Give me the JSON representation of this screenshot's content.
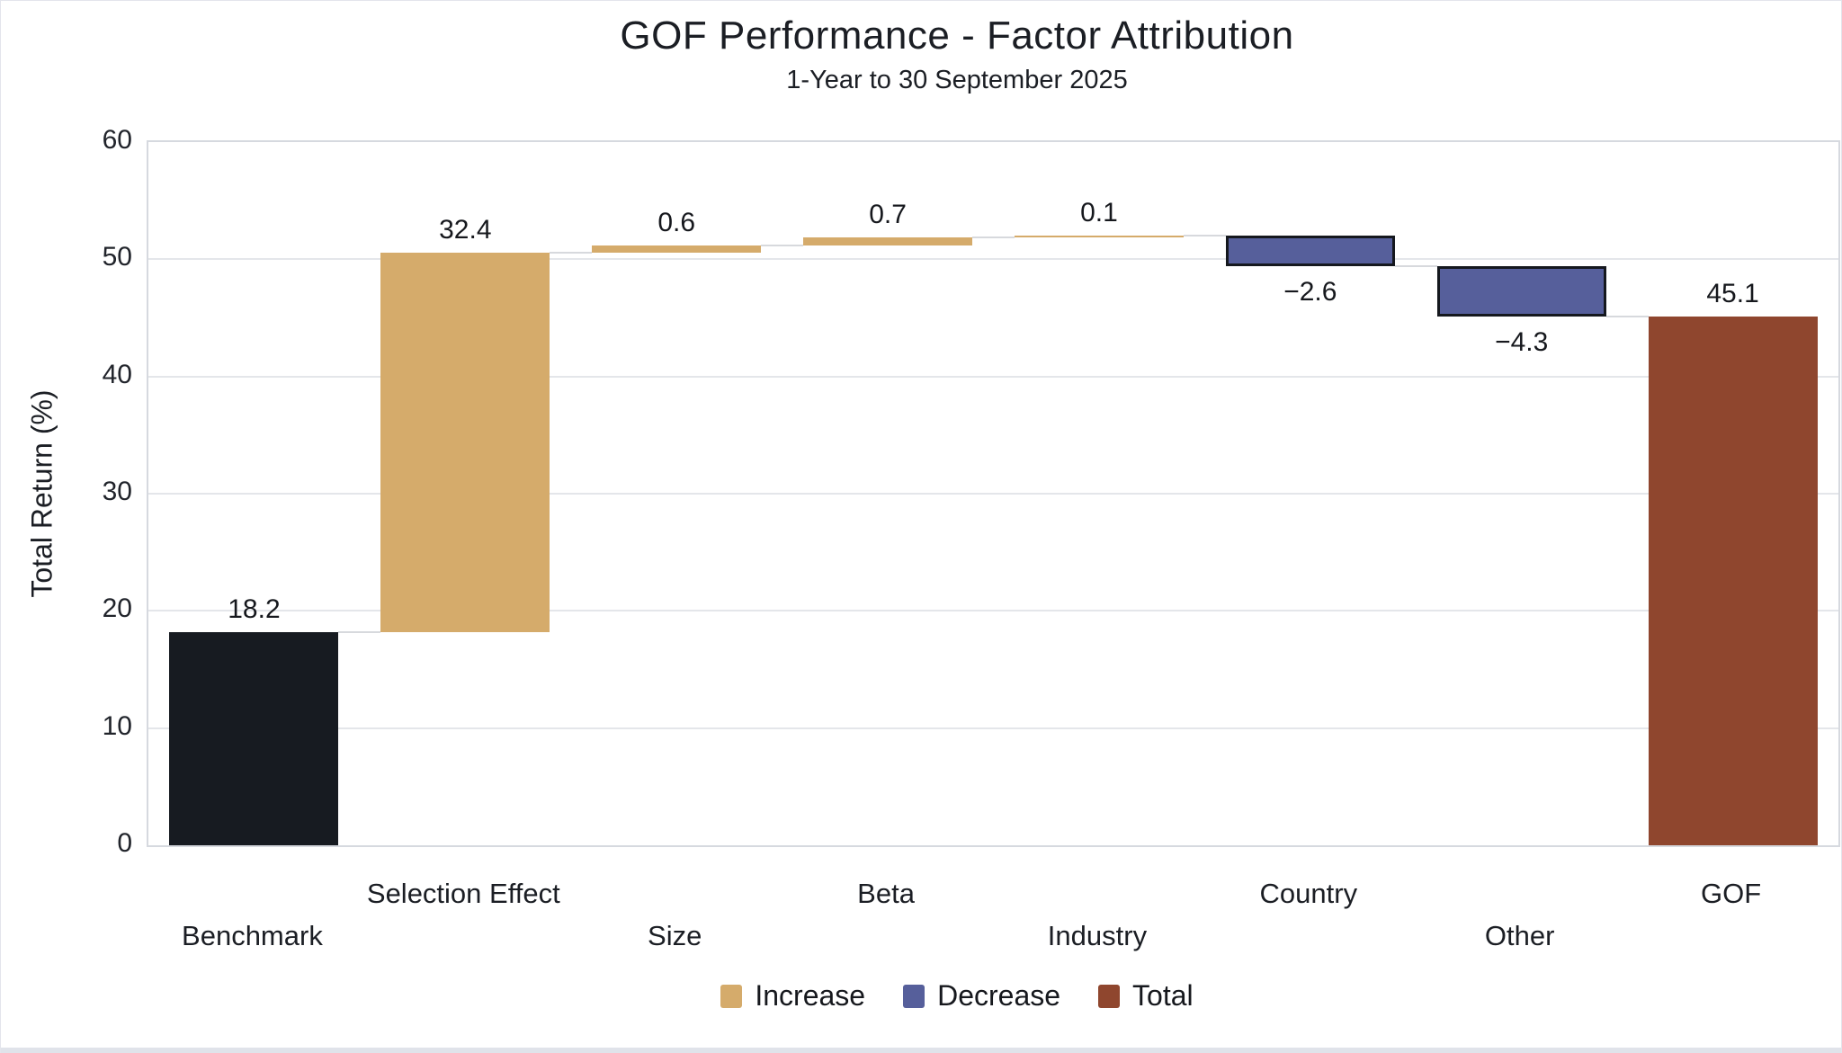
{
  "chart_data": {
    "type": "waterfall",
    "title": "GOF Performance - Factor Attribution",
    "subtitle": "1-Year to 30 September 2025",
    "ylabel": "Total Return (%)",
    "ylim": [
      0,
      60
    ],
    "yticks": [
      0,
      10,
      20,
      30,
      40,
      50,
      60
    ],
    "grid": "horizontal-only",
    "categories": [
      "Benchmark",
      "Selection Effect",
      "Size",
      "Beta",
      "Industry",
      "Country",
      "Other",
      "GOF"
    ],
    "measures": [
      "absolute",
      "relative",
      "relative",
      "relative",
      "relative",
      "relative",
      "relative",
      "total"
    ],
    "values": [
      18.2,
      32.4,
      0.6,
      0.7,
      0.1,
      -2.6,
      -4.3,
      45.1
    ],
    "bar_labels": [
      "18.2",
      "32.4",
      "0.6",
      "0.7",
      "0.1",
      "−2.6",
      "−4.3",
      "45.1"
    ],
    "running_totals": [
      18.2,
      50.6,
      51.2,
      51.9,
      52.0,
      49.4,
      45.1,
      45.1
    ],
    "label_position": {
      "positive": "above-bar",
      "negative": "below-bar"
    },
    "xlabel_layout": "staggered-two-rows",
    "legend": {
      "position": "bottom-center",
      "items": [
        {
          "label": "Increase",
          "color": "#d5ab6b"
        },
        {
          "label": "Decrease",
          "color": "#565f9b"
        },
        {
          "label": "Total",
          "color": "#8f462e"
        }
      ]
    },
    "colors": {
      "increase": "#d5ab6b",
      "decrease": "#565f9b",
      "decrease_border": "#15181e",
      "total": "#8f462e",
      "starting_total": "#171b21",
      "gridline": "#e4e6ea",
      "plot_border": "#d6d9df",
      "connector": "#d7d9dd",
      "text": "#1b1e24"
    }
  }
}
